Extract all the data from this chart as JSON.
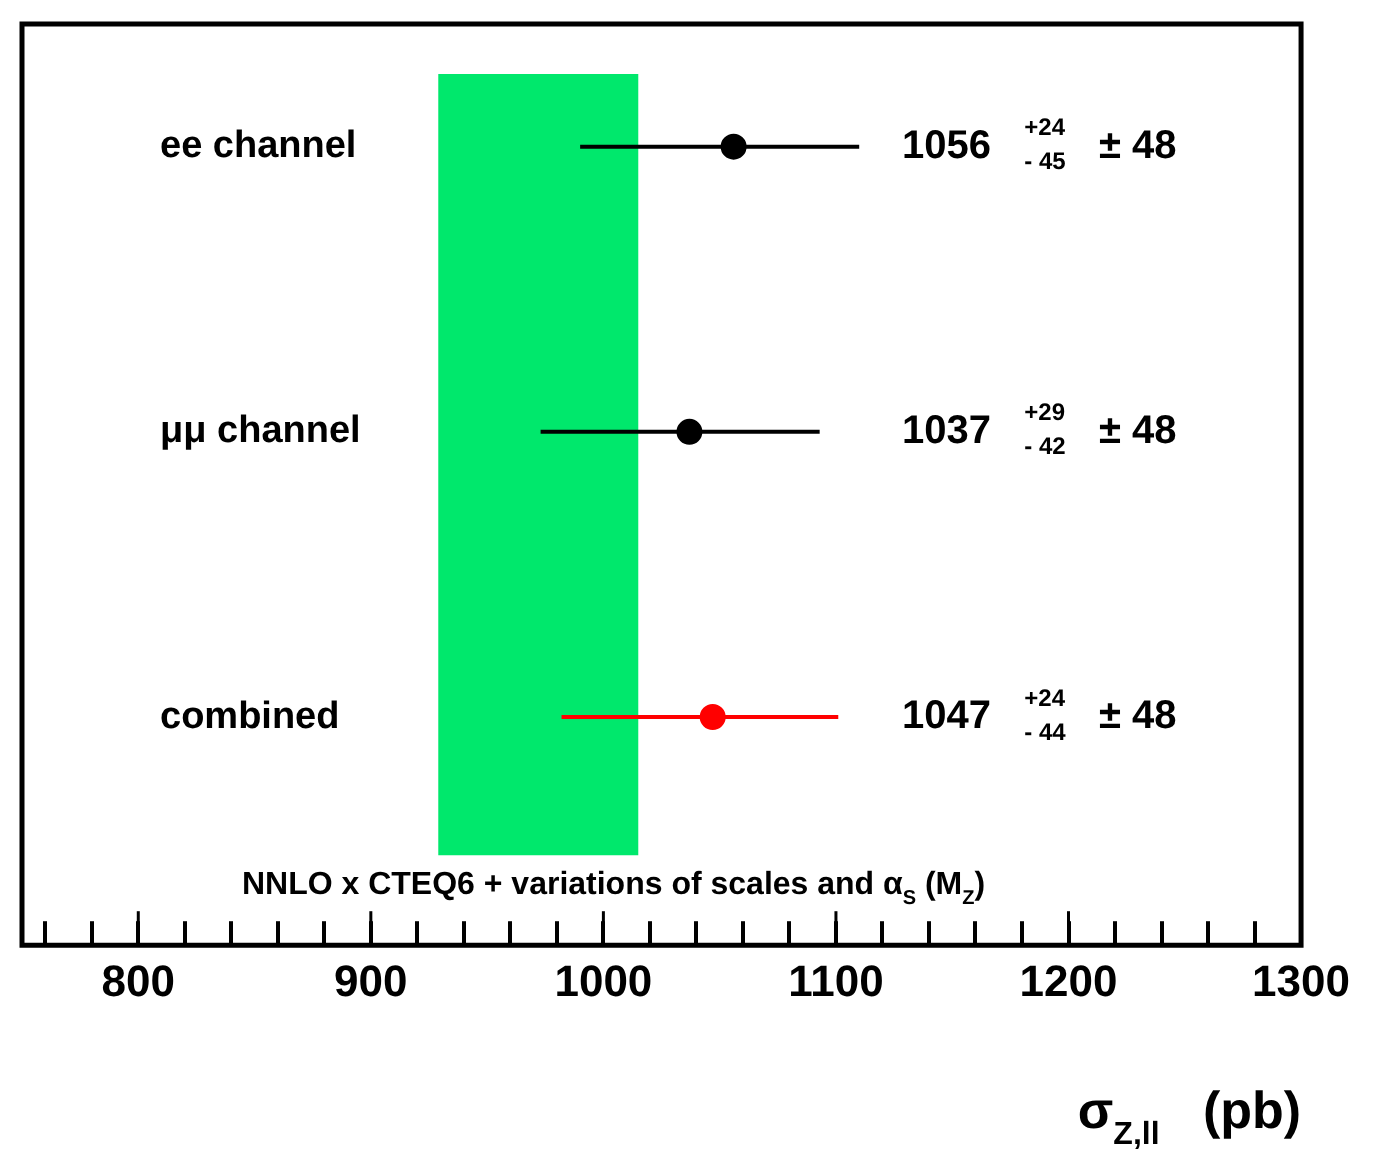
{
  "chart_data": {
    "type": "scatter",
    "orientation": "horizontal",
    "categories": [
      "ee channel",
      "μμ channel",
      "combined"
    ],
    "values": [
      1056,
      1037,
      1047
    ],
    "colors": [
      "#000000",
      "#000000",
      "#ff0000"
    ],
    "errors": [
      [
        990,
        1110
      ],
      [
        973,
        1093
      ],
      [
        982,
        1101
      ]
    ],
    "value_labels": [
      "1056   $^{+24}$$_{- 45}$   ± 48",
      "1037   $^{+29}$$_{- 42}$   ± 48",
      "1047   $^{+24}$$_{- 44}$   ± 48"
    ],
    "xlabel": "σ$_{Z,ll}$   (pb)",
    "xlim": [
      750,
      1300
    ],
    "xticks": [
      {
        "value": 760,
        "label": null
      },
      {
        "value": 780,
        "label": null
      },
      800,
      {
        "value": 820,
        "label": null
      },
      {
        "value": 840,
        "label": null
      },
      {
        "value": 860,
        "label": null
      },
      {
        "value": 880,
        "label": null
      },
      900,
      {
        "value": 920,
        "label": null
      },
      {
        "value": 940,
        "label": null
      },
      {
        "value": 960,
        "label": null
      },
      {
        "value": 980,
        "label": null
      },
      1000,
      {
        "value": 1020,
        "label": null
      },
      {
        "value": 1040,
        "label": null
      },
      {
        "value": 1060,
        "label": null
      },
      {
        "value": 1080,
        "label": null
      },
      1100,
      {
        "value": 1120,
        "label": null
      },
      {
        "value": 1140,
        "label": null
      },
      {
        "value": 1160,
        "label": null
      },
      {
        "value": 1180,
        "label": null
      },
      1200,
      {
        "value": 1220,
        "label": null
      },
      {
        "value": 1240,
        "label": null
      },
      {
        "value": 1260,
        "label": null
      },
      {
        "value": 1280,
        "label": null
      },
      1300
    ],
    "bands": [
      {
        "axis": "x",
        "from": 929,
        "to": 1015,
        "label": "NNLO x CTEQ6 + variations of scales and α$_{S}$ (M$_{Z}$)",
        "color": "#00e86c"
      }
    ],
    "marker": "circle",
    "grid": false,
    "legend": false
  }
}
